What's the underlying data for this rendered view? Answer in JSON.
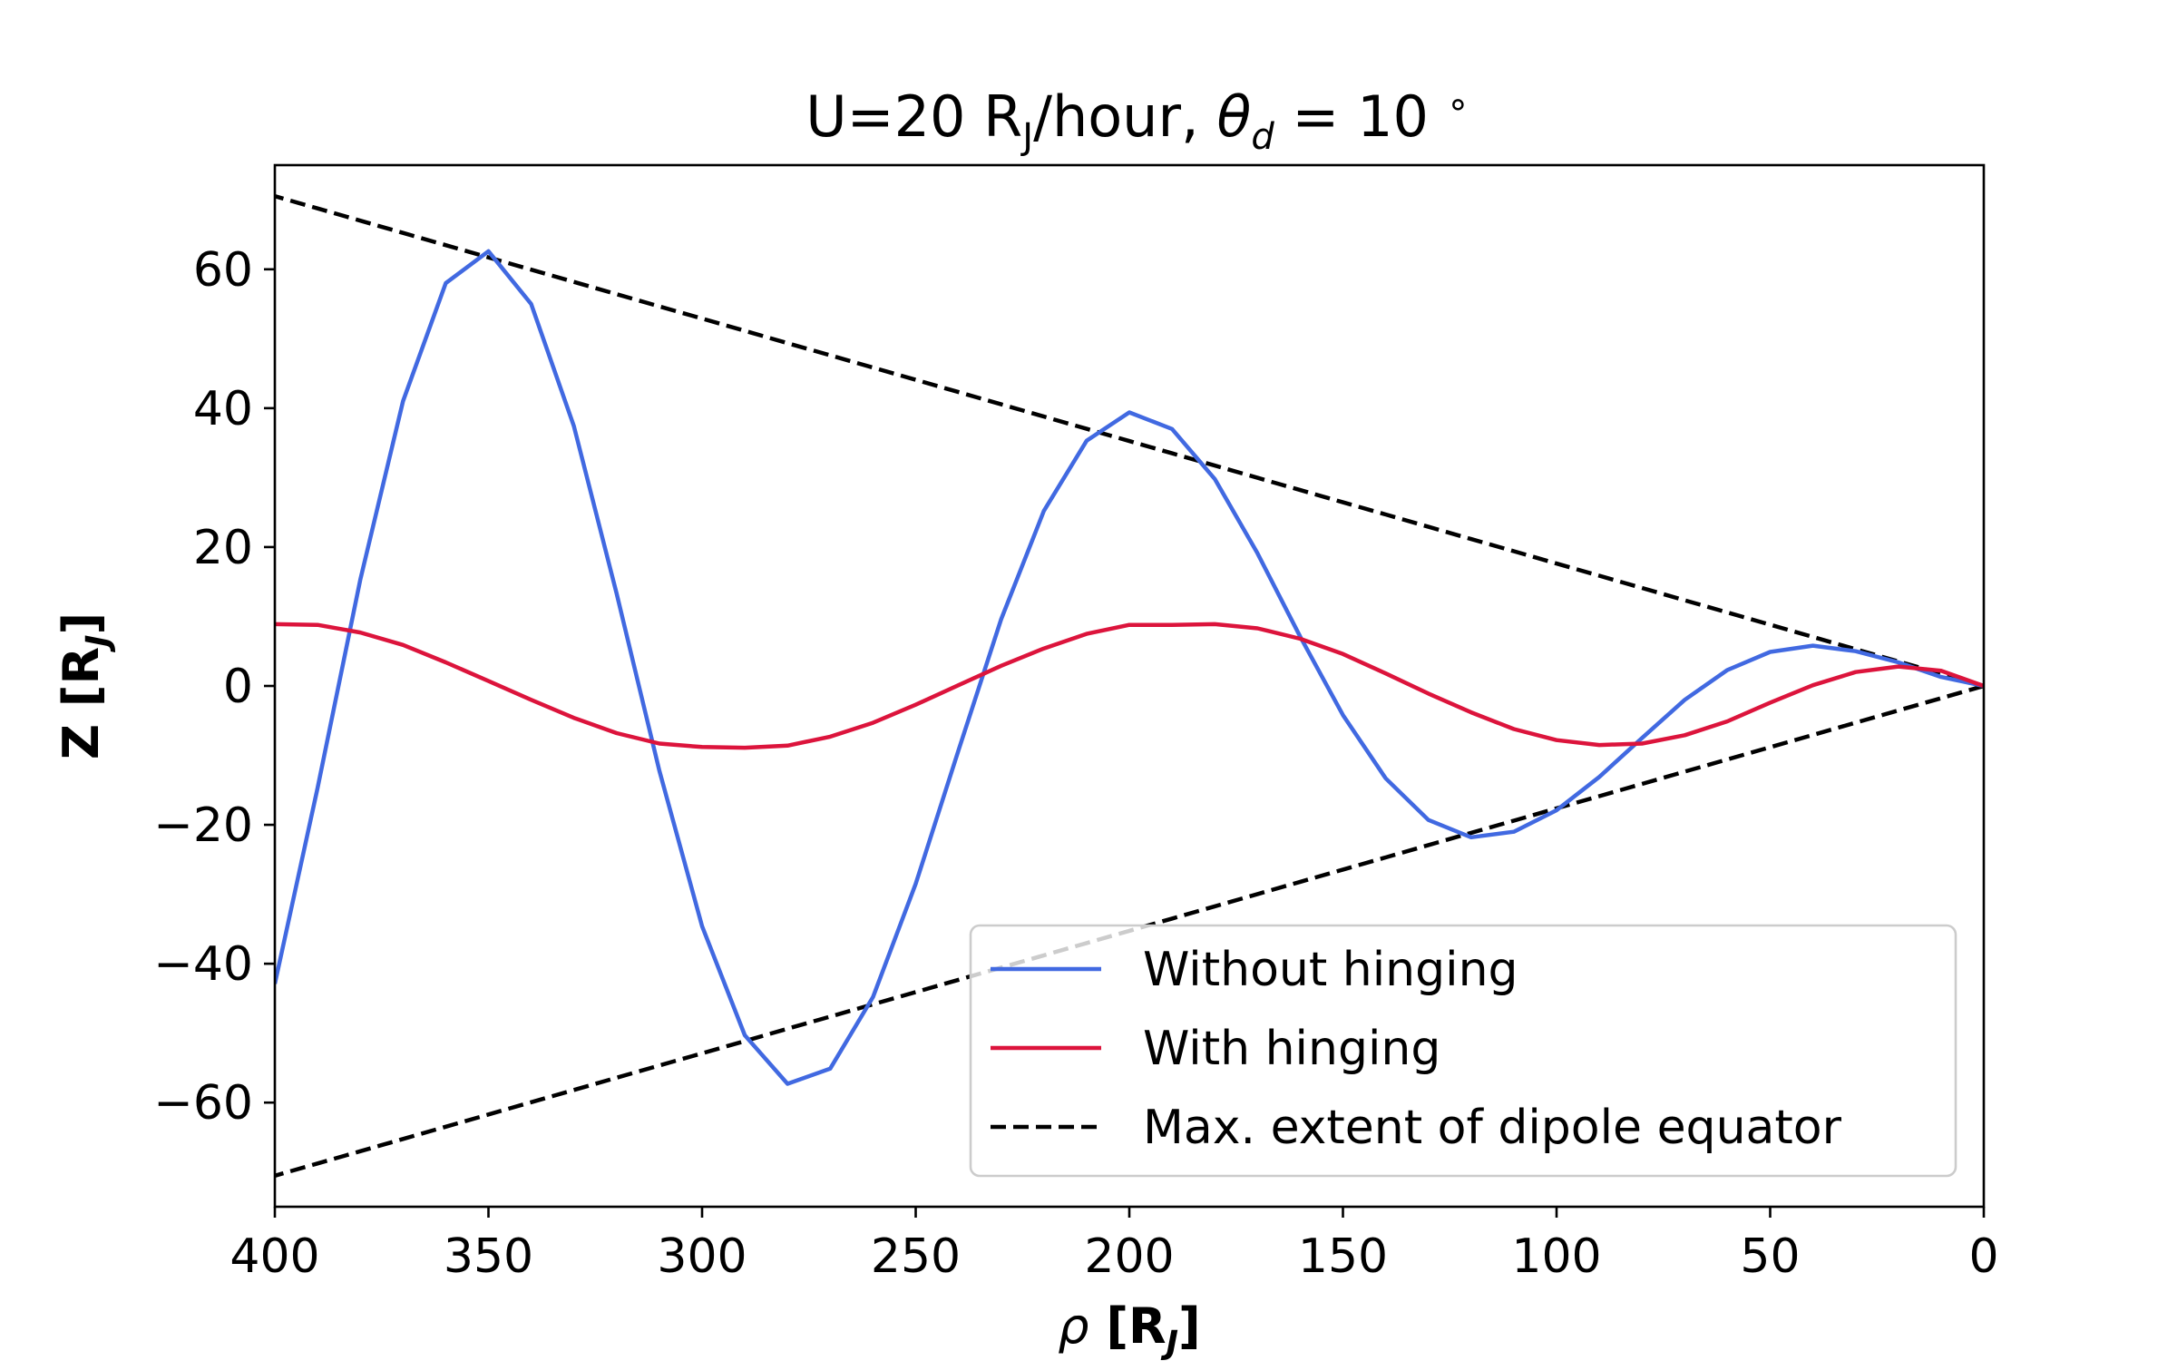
{
  "chart_data": {
    "type": "line",
    "title": {
      "prefix": "U=20 R",
      "prefix_sub": "J",
      "middle": "/hour, ",
      "theta": "θ",
      "theta_sub": "d",
      "suffix": " = 10 ",
      "degree": "∘"
    },
    "xlabel": {
      "symbol": "ρ",
      "text": "[R",
      "sub": "J",
      "close": "]"
    },
    "ylabel": {
      "text": "Z [R",
      "sub": "J",
      "close": "]"
    },
    "xlim": [
      400,
      0
    ],
    "ylim": [
      -75,
      75
    ],
    "x_inverted": true,
    "xticks": [
      400,
      350,
      300,
      250,
      200,
      150,
      100,
      50,
      0
    ],
    "xtick_labels": [
      "400",
      "350",
      "300",
      "250",
      "200",
      "150",
      "100",
      "50",
      "0"
    ],
    "yticks": [
      60,
      40,
      20,
      0,
      -20,
      -40,
      -60
    ],
    "ytick_labels": [
      "60",
      "40",
      "20",
      "0",
      "−20",
      "−40",
      "−60"
    ],
    "grid": false,
    "legend_position": "lower-right",
    "x": [
      0,
      10,
      20,
      30,
      40,
      50,
      60,
      70,
      80,
      90,
      100,
      110,
      120,
      130,
      140,
      150,
      160,
      170,
      180,
      190,
      200,
      210,
      220,
      230,
      240,
      250,
      260,
      270,
      280,
      290,
      300,
      310,
      320,
      330,
      340,
      350,
      360,
      370,
      380,
      390,
      400
    ],
    "series": [
      {
        "name": "Without hinging",
        "color": "#4169e1",
        "style": "solid",
        "values": [
          0,
          1.3,
          3.4,
          5.0,
          5.8,
          4.9,
          2.3,
          -2.0,
          -7.5,
          -13.1,
          -17.9,
          -21.0,
          -21.8,
          -19.3,
          -13.3,
          -4.2,
          7.1,
          19.1,
          29.8,
          37.0,
          39.4,
          35.3,
          25.2,
          9.6,
          -9.3,
          -28.5,
          -44.8,
          -55.1,
          -57.3,
          -50.3,
          -34.6,
          -12.2,
          13.3,
          37.4,
          55.0,
          62.6,
          58.0,
          41.0,
          15.3,
          -14.7,
          -42.9
        ]
      },
      {
        "name": "With hinging",
        "color": "#dc143c",
        "style": "solid",
        "values": [
          0,
          2.2,
          2.8,
          2.0,
          0.1,
          -2.4,
          -5.1,
          -7.1,
          -8.3,
          -8.5,
          -7.8,
          -6.2,
          -3.8,
          -1.1,
          1.8,
          4.6,
          6.8,
          8.3,
          8.9,
          8.8,
          8.8,
          7.5,
          5.4,
          2.9,
          0.1,
          -2.7,
          -5.3,
          -7.3,
          -8.6,
          -8.9,
          -8.8,
          -8.3,
          -6.8,
          -4.6,
          -2.0,
          0.7,
          3.4,
          5.9,
          7.7,
          8.8,
          8.9
        ]
      },
      {
        "name": "Max. extent of dipole equator",
        "color": "#000000",
        "style": "dashed",
        "pair": true,
        "values": [
          0,
          1.76,
          3.53,
          5.29,
          7.05,
          8.82,
          10.58,
          12.34,
          14.11,
          15.87,
          17.63,
          19.4,
          21.16,
          22.92,
          24.69,
          26.45,
          28.21,
          29.98,
          31.74,
          33.5,
          35.27,
          37.03,
          38.79,
          40.56,
          42.32,
          44.08,
          45.85,
          47.61,
          49.37,
          51.14,
          52.9,
          54.66,
          56.42,
          58.19,
          59.95,
          61.71,
          63.48,
          65.24,
          67.0,
          68.77,
          70.53
        ]
      }
    ]
  }
}
